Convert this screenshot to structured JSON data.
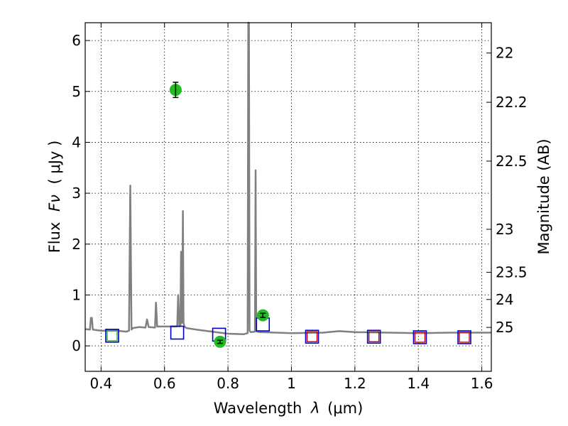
{
  "chart_data": {
    "type": "scatter",
    "xlabel_prefix": "Wavelength",
    "xlabel_symbol": "λ",
    "xlabel_unit": "(μm)",
    "ylabel_prefix": "Flux",
    "ylabel_symbol": "Fν",
    "ylabel_unit": "( μJy )",
    "y2label": "Magnitude (AB)",
    "xlim": [
      0.35,
      1.63
    ],
    "ylim": [
      -0.5,
      6.35
    ],
    "grid": true,
    "x_ticks": [
      0.4,
      0.6,
      0.8,
      1.0,
      1.2,
      1.4,
      1.6
    ],
    "x_tick_labels": [
      "0.4",
      "0.6",
      "0.8",
      "1",
      "1.2",
      "1.4",
      "1.6"
    ],
    "y_ticks": [
      0,
      1,
      2,
      3,
      4,
      5,
      6
    ],
    "y_tick_labels": [
      "0",
      "1",
      "2",
      "3",
      "4",
      "5",
      "6"
    ],
    "y2_ticks": [
      22,
      22.2,
      22.5,
      23,
      23.5,
      24,
      25
    ],
    "y2_tick_labels": [
      "22",
      "22.2",
      "22.5",
      "23",
      "23.5",
      "24",
      "25"
    ],
    "colors": {
      "model": "#808080",
      "observed": "#22bb22",
      "model_box": "#0000cc",
      "model_box_inner": "#cc0000",
      "green_box": "#22bb22"
    },
    "model_spectrum": {
      "x": [
        0.35,
        0.365,
        0.368,
        0.371,
        0.374,
        0.4,
        0.45,
        0.48,
        0.488,
        0.492,
        0.496,
        0.5,
        0.52,
        0.54,
        0.545,
        0.55,
        0.57,
        0.573,
        0.577,
        0.6,
        0.64,
        0.643,
        0.647,
        0.65,
        0.652,
        0.654,
        0.656,
        0.658,
        0.66,
        0.662,
        0.664,
        0.67,
        0.7,
        0.75,
        0.8,
        0.85,
        0.862,
        0.864,
        0.866,
        0.868,
        0.87,
        0.872,
        0.885,
        0.887,
        0.889,
        0.891,
        0.9,
        0.95,
        1.0,
        1.1,
        1.15,
        1.2,
        1.3,
        1.4,
        1.5,
        1.63
      ],
      "y": [
        0.33,
        0.32,
        0.55,
        0.55,
        0.32,
        0.3,
        0.3,
        0.28,
        0.3,
        3.15,
        0.32,
        0.35,
        0.37,
        0.36,
        0.52,
        0.37,
        0.36,
        0.85,
        0.38,
        0.38,
        0.38,
        1.0,
        0.38,
        0.4,
        1.85,
        0.45,
        0.5,
        2.65,
        0.45,
        0.4,
        0.37,
        0.35,
        0.32,
        0.28,
        0.24,
        0.23,
        0.25,
        6.35,
        6.35,
        0.3,
        0.28,
        0.27,
        0.28,
        3.45,
        0.3,
        0.28,
        0.27,
        0.26,
        0.25,
        0.26,
        0.29,
        0.27,
        0.26,
        0.25,
        0.26,
        0.26
      ]
    },
    "observed": [
      {
        "x": 0.635,
        "y": 5.03,
        "yerr": 0.15
      },
      {
        "x": 0.775,
        "y": 0.08,
        "yerr": 0.03
      },
      {
        "x": 0.91,
        "y": 0.6,
        "yerr": 0.04
      }
    ],
    "model_photometry": [
      {
        "x": 0.435,
        "y": 0.2,
        "inner": "green"
      },
      {
        "x": 0.64,
        "y": 0.26,
        "inner": "none"
      },
      {
        "x": 0.772,
        "y": 0.22,
        "inner": "none"
      },
      {
        "x": 0.91,
        "y": 0.42,
        "inner": "none"
      },
      {
        "x": 1.065,
        "y": 0.18,
        "inner": "red"
      },
      {
        "x": 1.26,
        "y": 0.18,
        "inner": "red"
      },
      {
        "x": 1.405,
        "y": 0.17,
        "inner": "red"
      },
      {
        "x": 1.545,
        "y": 0.17,
        "inner": "red"
      }
    ]
  }
}
